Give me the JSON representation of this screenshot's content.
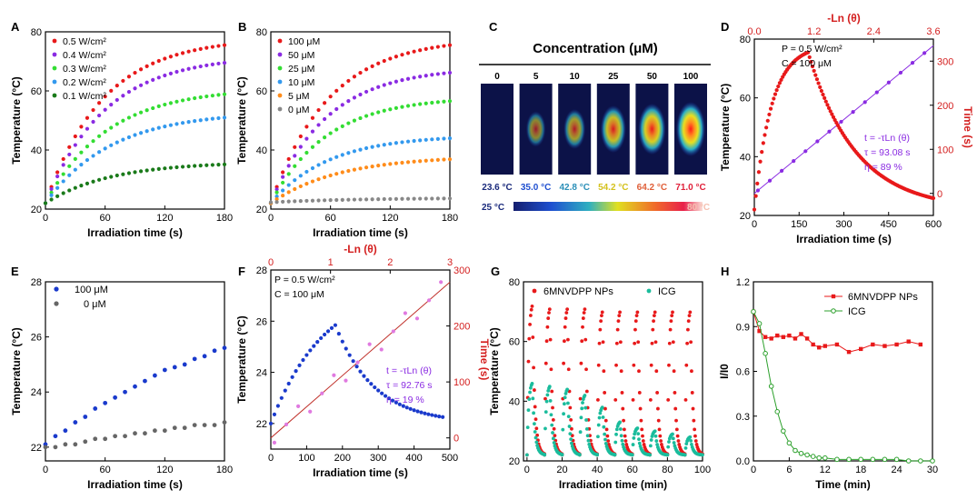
{
  "panelC": {
    "letter": "C",
    "title": "Concentration (μM)",
    "concentrations": [
      "0",
      "5",
      "10",
      "25",
      "50",
      "100"
    ],
    "temps": [
      "23.6 °C",
      "35.0 °C",
      "42.8 °C",
      "54.2 °C",
      "64.2 °C",
      "71.0 °C"
    ],
    "temp_colors": [
      "#1a2a7c",
      "#1f4fd0",
      "#2a8fb8",
      "#d4c11c",
      "#e0603a",
      "#e0203a"
    ],
    "intensity": [
      0,
      0.35,
      0.5,
      0.75,
      0.88,
      1.0
    ],
    "scale_min": "25 °C",
    "scale_max": "80 °C"
  },
  "chart_data": [
    {
      "panel": "A",
      "type": "scatter",
      "xlabel": "Irradiation time (s)",
      "ylabel": "Temperature (°C)",
      "xlim": [
        0,
        180
      ],
      "ylim": [
        20,
        80
      ],
      "xticks": [
        0,
        60,
        120,
        180
      ],
      "yticks": [
        20,
        40,
        60,
        80
      ],
      "series": [
        {
          "name": "0.5 W/cm²",
          "color": "#e8191a",
          "model": {
            "y0": 22,
            "yinf": 78,
            "tau": 58
          }
        },
        {
          "name": "0.4 W/cm²",
          "color": "#8a2be2",
          "model": {
            "y0": 22,
            "yinf": 72,
            "tau": 60
          }
        },
        {
          "name": "0.3 W/cm²",
          "color": "#33dd33",
          "model": {
            "y0": 22,
            "yinf": 61,
            "tau": 62
          }
        },
        {
          "name": "0.2 W/cm²",
          "color": "#3399ee",
          "model": {
            "y0": 22,
            "yinf": 53,
            "tau": 66
          }
        },
        {
          "name": "0.1 W/cm²",
          "color": "#1a7a1a",
          "model": {
            "y0": 22,
            "yinf": 36,
            "tau": 65
          }
        }
      ],
      "n_points": 31
    },
    {
      "panel": "B",
      "type": "scatter",
      "xlabel": "Irradiation time (s)",
      "ylabel": "Temperature (°C)",
      "xlim": [
        0,
        180
      ],
      "ylim": [
        20,
        80
      ],
      "xticks": [
        0,
        60,
        120,
        180
      ],
      "yticks": [
        20,
        40,
        60,
        80
      ],
      "series": [
        {
          "name": "100 μM",
          "color": "#e8191a",
          "model": {
            "y0": 22,
            "yinf": 78,
            "tau": 58
          }
        },
        {
          "name": "50 μM",
          "color": "#8a2be2",
          "model": {
            "y0": 22,
            "yinf": 68,
            "tau": 56
          }
        },
        {
          "name": "25 μM",
          "color": "#33dd33",
          "model": {
            "y0": 22,
            "yinf": 58,
            "tau": 56
          }
        },
        {
          "name": "10 μM",
          "color": "#3399ee",
          "model": {
            "y0": 22,
            "yinf": 45,
            "tau": 58
          }
        },
        {
          "name": "5 μM",
          "color": "#ff8c1a",
          "model": {
            "y0": 22,
            "yinf": 38,
            "tau": 68
          }
        },
        {
          "name": "0 μM",
          "color": "#888888",
          "model": {
            "y0": 22.3,
            "yinf": 23.8,
            "tau": 90
          }
        }
      ],
      "n_points": 31
    },
    {
      "panel": "D",
      "type": "scatter",
      "xlabel": "Irradiation time (s)",
      "ylabel": "Temperature (°C)",
      "xlim": [
        0,
        600
      ],
      "ylim": [
        20,
        80
      ],
      "xticks": [
        0,
        150,
        300,
        450,
        600
      ],
      "yticks": [
        20,
        40,
        60,
        80
      ],
      "top_axis": {
        "label": "-Ln (θ)",
        "lim": [
          0,
          3.6
        ],
        "ticks": [
          0.0,
          1.2,
          2.4,
          3.6
        ]
      },
      "right_axis": {
        "label": "Time (s)",
        "lim": [
          -50,
          350
        ],
        "ticks": [
          0,
          100,
          200,
          300
        ]
      },
      "annotation": [
        "P = 0.5 W/cm²",
        "C = 100 μM"
      ],
      "fit_text": [
        "t = -τLn (θ)",
        "τ = 93.08 s",
        "η = 89 %"
      ],
      "heating": {
        "y0": 22,
        "yinf": 78,
        "tau": 58,
        "tend": 180
      },
      "cooling": {
        "tau": 160,
        "tend": 600
      },
      "fit_line": {
        "slope": 93.08,
        "intercept": 0
      },
      "colors": {
        "data": "#e8191a",
        "fit": "#8a2be2"
      }
    },
    {
      "panel": "E",
      "type": "scatter",
      "xlabel": "Irradiation time (s)",
      "ylabel": "Temperature (°C)",
      "xlim": [
        0,
        180
      ],
      "ylim": [
        21.5,
        28
      ],
      "xticks": [
        0,
        60,
        120,
        180
      ],
      "yticks": [
        22,
        24,
        26,
        28
      ],
      "series": [
        {
          "name": "100 μM",
          "color": "#1a3acc",
          "x": [
            0,
            10,
            20,
            30,
            40,
            50,
            60,
            70,
            80,
            90,
            100,
            110,
            120,
            130,
            140,
            150,
            160,
            170,
            180
          ],
          "y": [
            22.1,
            22.4,
            22.6,
            22.9,
            23.1,
            23.4,
            23.6,
            23.8,
            24.0,
            24.2,
            24.4,
            24.6,
            24.8,
            24.9,
            25.0,
            25.2,
            25.3,
            25.5,
            25.6
          ]
        },
        {
          "name": "0 μM",
          "color": "#666666",
          "x": [
            0,
            10,
            20,
            30,
            40,
            50,
            60,
            70,
            80,
            90,
            100,
            110,
            120,
            130,
            140,
            150,
            160,
            170,
            180
          ],
          "y": [
            22.0,
            22.0,
            22.1,
            22.1,
            22.2,
            22.3,
            22.3,
            22.4,
            22.4,
            22.5,
            22.5,
            22.6,
            22.6,
            22.7,
            22.7,
            22.8,
            22.8,
            22.8,
            22.9
          ]
        }
      ]
    },
    {
      "panel": "F",
      "type": "scatter",
      "xlabel": "Irradiation time (s)",
      "ylabel": "Temperature (°C)",
      "xlim": [
        0,
        500
      ],
      "ylim": [
        21,
        28
      ],
      "xticks": [
        0,
        100,
        200,
        300,
        400,
        500
      ],
      "yticks": [
        22,
        24,
        26,
        28
      ],
      "top_axis": {
        "label": "-Ln (θ)",
        "lim": [
          0,
          3
        ],
        "ticks": [
          0,
          1,
          2,
          3
        ]
      },
      "right_axis": {
        "label": "Time (s)",
        "lim": [
          -20,
          300
        ],
        "ticks": [
          0,
          100,
          200,
          300
        ]
      },
      "annotation": [
        "P = 0.5 W/cm²",
        "C = 100 μM"
      ],
      "fit_text": [
        "t = -τLn (θ)",
        "τ = 92.76 s",
        "η = 19 %"
      ],
      "heating": {
        "y0": 22.0,
        "yinf": 27.5,
        "tau": 150,
        "tend": 180
      },
      "cooling": {
        "tau": 110,
        "tend": 480
      },
      "fit_line": {
        "slope": 92.76,
        "intercept": 0
      },
      "colors": {
        "data": "#1a3acc",
        "fit": "#e07ae0"
      }
    },
    {
      "panel": "G",
      "type": "scatter",
      "xlabel": "Irradiation time (min)",
      "ylabel": "Temperature (°C)",
      "xlim": [
        -2,
        100
      ],
      "ylim": [
        20,
        80
      ],
      "xticks": [
        0,
        20,
        40,
        60,
        80,
        100
      ],
      "yticks": [
        20,
        40,
        60,
        80
      ],
      "series": [
        {
          "name": "6MNVDPP NPs",
          "color": "#e8191a",
          "peaks": [
            72,
            71,
            71,
            71,
            70,
            70,
            70,
            70,
            70,
            70
          ]
        },
        {
          "name": "ICG",
          "color": "#1abc9c",
          "peaks": [
            46,
            45,
            44,
            42,
            38,
            33,
            31,
            30,
            29,
            28
          ]
        }
      ],
      "cycle_min": 10,
      "heat_min": 3,
      "base": 22
    },
    {
      "panel": "H",
      "type": "line",
      "xlabel": "Time (min)",
      "ylabel": "I/I0",
      "xlim": [
        0,
        30
      ],
      "ylim": [
        0,
        1.2
      ],
      "xticks": [
        0,
        6,
        12,
        18,
        24,
        30
      ],
      "yticks": [
        0.0,
        0.3,
        0.6,
        0.9,
        1.2
      ],
      "series": [
        {
          "name": "6MNVDPP NPs",
          "color": "#e8191a",
          "x": [
            0,
            1,
            2,
            3,
            4,
            5,
            6,
            7,
            8,
            9,
            10,
            11,
            12,
            14,
            16,
            18,
            20,
            22,
            24,
            26,
            28
          ],
          "y": [
            1.0,
            0.87,
            0.83,
            0.82,
            0.84,
            0.83,
            0.84,
            0.82,
            0.85,
            0.82,
            0.78,
            0.76,
            0.77,
            0.78,
            0.73,
            0.75,
            0.78,
            0.77,
            0.78,
            0.8,
            0.78
          ]
        },
        {
          "name": "ICG",
          "color": "#2ca02c",
          "x": [
            0,
            1,
            2,
            3,
            4,
            5,
            6,
            7,
            8,
            9,
            10,
            11,
            12,
            14,
            16,
            18,
            20,
            22,
            24,
            26,
            28,
            30
          ],
          "y": [
            1.0,
            0.92,
            0.72,
            0.5,
            0.33,
            0.2,
            0.12,
            0.07,
            0.05,
            0.04,
            0.03,
            0.02,
            0.02,
            0.01,
            0.01,
            0.01,
            0.01,
            0.01,
            0.01,
            0.0,
            0.0,
            0.0
          ]
        }
      ]
    }
  ]
}
